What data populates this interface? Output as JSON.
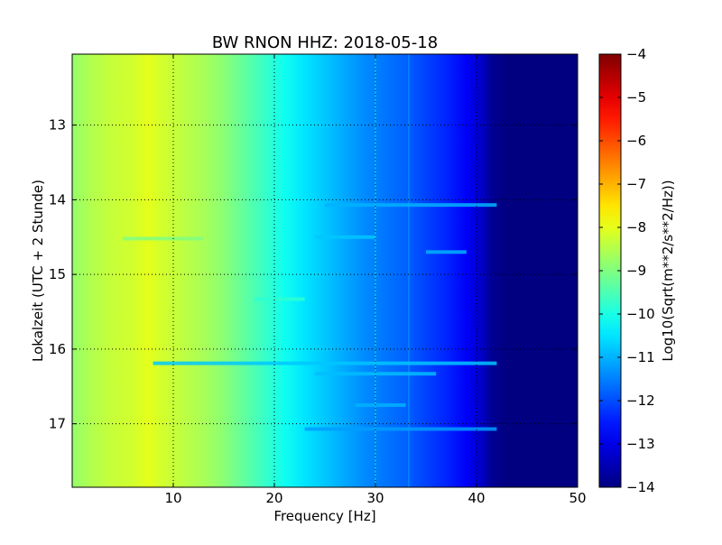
{
  "chart_data": {
    "type": "heatmap",
    "title": "BW RNON HHZ: 2018-05-18",
    "xlabel": "Frequency [Hz]",
    "ylabel": "Lokalzeit (UTC + 2 Stunde)",
    "colorbar_label": "Log10(Sqrt(m**2/s**2/Hz))",
    "xlim": [
      0,
      50
    ],
    "ylim": [
      12.05,
      17.85
    ],
    "y_inverted": true,
    "x_ticks": [
      10,
      20,
      30,
      40,
      50
    ],
    "x_tick_labels": [
      "10",
      "20",
      "30",
      "40",
      "50"
    ],
    "y_ticks": [
      13,
      14,
      15,
      16,
      17
    ],
    "y_tick_labels": [
      "13",
      "14",
      "15",
      "16",
      "17"
    ],
    "colorbar_range": [
      -14,
      -4
    ],
    "colorbar_ticks": [
      -4,
      -5,
      -6,
      -7,
      -8,
      -9,
      -10,
      -11,
      -12,
      -13,
      -14
    ],
    "colorbar_tick_labels": [
      "−4",
      "−5",
      "−6",
      "−7",
      "−8",
      "−9",
      "−10",
      "−11",
      "−12",
      "−13",
      "−14"
    ],
    "colormap": "jet",
    "grid": true,
    "grid_style": "dotted",
    "frequency_profile": {
      "freq": [
        0,
        2,
        4,
        6,
        7.5,
        9,
        11,
        13,
        15,
        17,
        19,
        21,
        23,
        25,
        27,
        29,
        31,
        33,
        35,
        37,
        39,
        40.5,
        41.5,
        43,
        50
      ],
      "value": [
        -8.8,
        -8.5,
        -8.3,
        -8.2,
        -8.0,
        -8.2,
        -8.4,
        -8.6,
        -8.9,
        -9.3,
        -9.7,
        -10.1,
        -10.5,
        -10.8,
        -11.1,
        -11.4,
        -11.6,
        -11.8,
        -12.1,
        -12.4,
        -12.8,
        -13.3,
        -13.8,
        -14.0,
        -14.0
      ]
    },
    "horizontal_bands": [
      {
        "time": 14.07,
        "f_start": 25,
        "f_end": 42,
        "value": -11.0
      },
      {
        "time": 16.19,
        "f_start": 8,
        "f_end": 42,
        "value": -10.8
      },
      {
        "time": 16.33,
        "f_start": 24,
        "f_end": 36,
        "value": -10.9
      },
      {
        "time": 15.33,
        "f_start": 18,
        "f_end": 23,
        "value": -9.8
      },
      {
        "time": 14.7,
        "f_start": 35,
        "f_end": 39,
        "value": -11.0
      },
      {
        "time": 16.75,
        "f_start": 28,
        "f_end": 33,
        "value": -11.0
      },
      {
        "time": 17.07,
        "f_start": 23,
        "f_end": 42,
        "value": -11.2
      },
      {
        "time": 14.52,
        "f_start": 5,
        "f_end": 13,
        "value": -9.0
      },
      {
        "time": 14.5,
        "f_start": 24,
        "f_end": 30,
        "value": -10.8
      }
    ],
    "vertical_lines": [
      {
        "freq": 16.7,
        "value": -9.2
      },
      {
        "freq": 30.0,
        "value": -10.6
      },
      {
        "freq": 33.3,
        "value": -11.2
      }
    ]
  }
}
